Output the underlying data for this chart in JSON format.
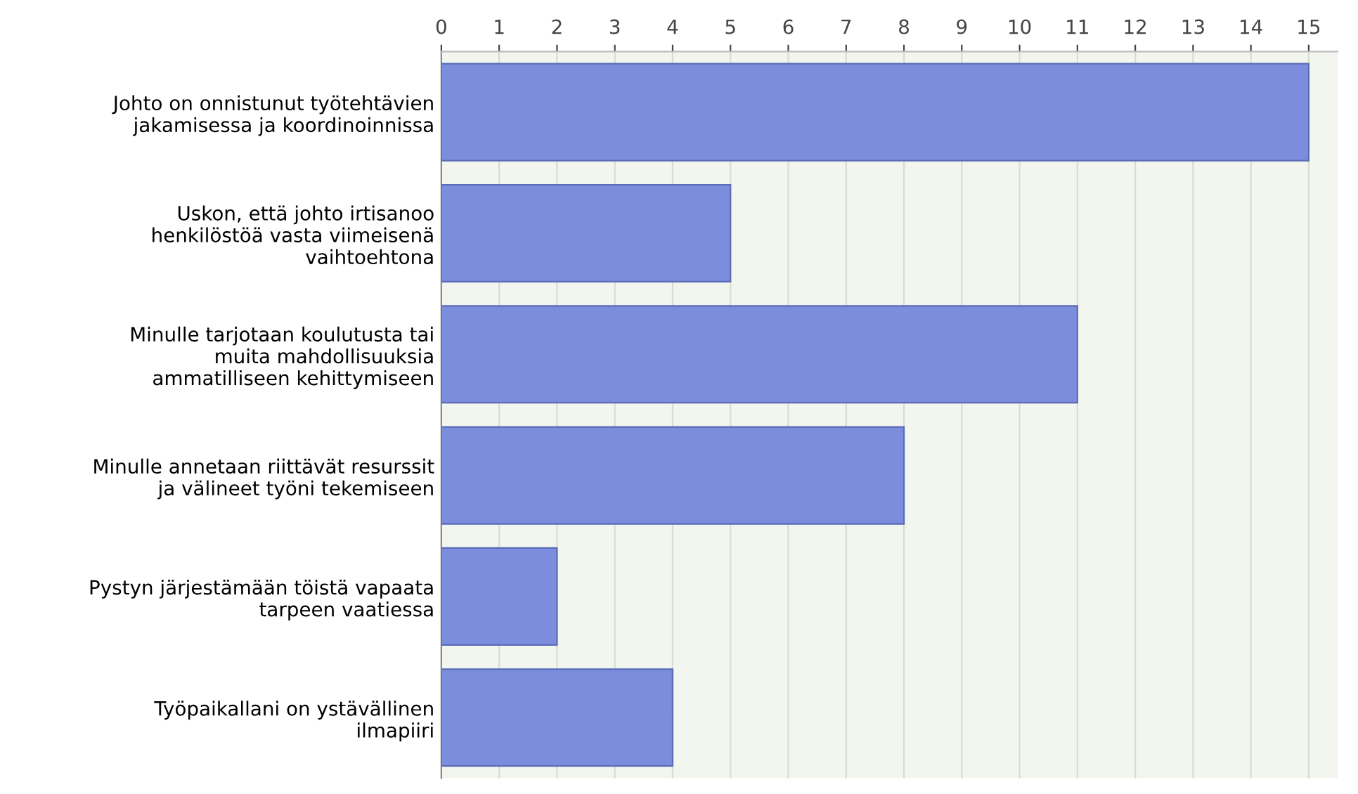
{
  "chart_data": {
    "type": "bar",
    "orientation": "horizontal",
    "categories": [
      "Johto on onnistunut työtehtävien\njakamisessa ja koordinoinnissa",
      "Uskon, että johto irtisanoo\nhenkilöstöä vasta viimeisenä\nvaihtoehtona",
      "Minulle tarjotaan koulutusta tai\nmuita mahdollisuuksia\nammatilliseen kehittymiseen",
      "Minulle annetaan riittävät resurssit\nja välineet työni tekemiseen",
      "Pystyn järjestämään töistä vapaata\ntarpeen vaatiessa",
      "Työpaikallani on ystävällinen\nilmapiiri"
    ],
    "values": [
      15,
      5,
      11,
      8,
      2,
      4
    ],
    "color": "#7b8ddc",
    "xlim": [
      0,
      15.5
    ],
    "xticks": [
      0,
      1,
      2,
      3,
      4,
      5,
      6,
      7,
      8,
      9,
      10,
      11,
      12,
      13,
      14,
      15
    ],
    "grid": "x"
  }
}
